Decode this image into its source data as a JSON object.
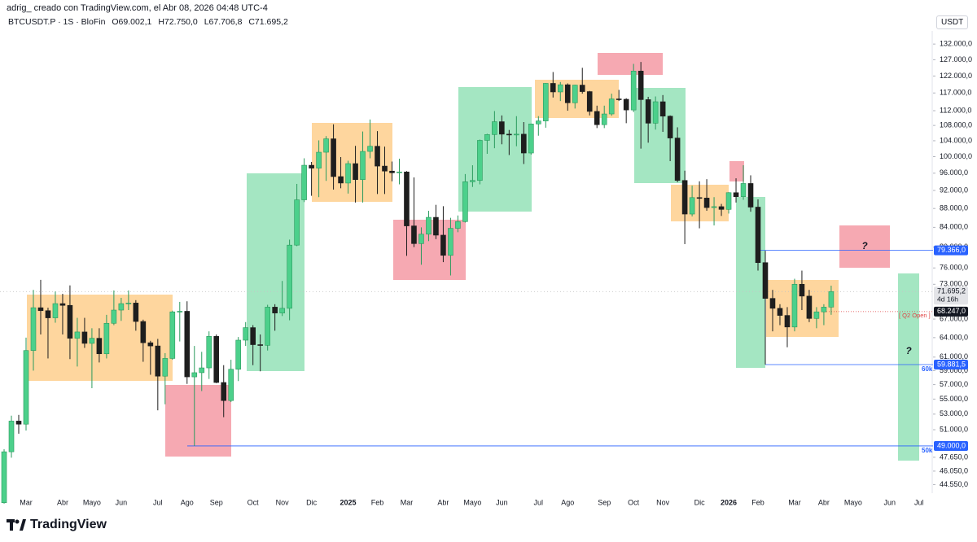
{
  "credit": "adrig_ creado con TradingView.com, el Abr 08, 2026 04:48 UTC-4",
  "brand": "TradingView",
  "chart_data": {
    "type": "candlestick",
    "title": "BTCUSDT.P · 1S · BloFin",
    "legend_values": [
      "O69.002,1",
      "H72.750,0",
      "L67.706,8",
      "C71.695,2"
    ],
    "currency": "USDT",
    "log_scale": true,
    "grid": false,
    "up_color": "#4cd08b",
    "down_color": "#1e1e1e",
    "ylim": [
      43700,
      135800
    ],
    "yticks": [
      {
        "value": 132000,
        "label": "132.000,0"
      },
      {
        "value": 127000,
        "label": "127.000,0"
      },
      {
        "value": 122000,
        "label": "122.000,0"
      },
      {
        "value": 117000,
        "label": "117.000,0"
      },
      {
        "value": 112000,
        "label": "112.000,0"
      },
      {
        "value": 108000,
        "label": "108.000,0"
      },
      {
        "value": 104000,
        "label": "104.000,0"
      },
      {
        "value": 100000,
        "label": "100.000,0"
      },
      {
        "value": 96000,
        "label": "96.000,0"
      },
      {
        "value": 92000,
        "label": "92.000,0"
      },
      {
        "value": 88000,
        "label": "88.000,0"
      },
      {
        "value": 84000,
        "label": "84.000,0"
      },
      {
        "value": 80000,
        "label": "80.000,0"
      },
      {
        "value": 76000,
        "label": "76.000,0"
      },
      {
        "value": 73000,
        "label": "73.000,0"
      },
      {
        "value": 67000,
        "label": "67.000,0"
      },
      {
        "value": 64000,
        "label": "64.000,0"
      },
      {
        "value": 61000,
        "label": "61.000,0"
      },
      {
        "value": 59000,
        "label": "59.000,0"
      },
      {
        "value": 57000,
        "label": "57.000,0"
      },
      {
        "value": 55000,
        "label": "55.000,0"
      },
      {
        "value": 53000,
        "label": "53.000,0"
      },
      {
        "value": 51000,
        "label": "51.000,0"
      },
      {
        "value": 47650,
        "label": "47.650,0"
      },
      {
        "value": 46050,
        "label": "46.050,0"
      },
      {
        "value": 44550,
        "label": "44.550,0"
      }
    ],
    "categories": [
      null,
      null,
      null,
      "Mar",
      null,
      null,
      null,
      null,
      "Abr",
      null,
      null,
      null,
      "Mayo",
      null,
      null,
      null,
      "Jun",
      null,
      null,
      null,
      null,
      "Jul",
      null,
      null,
      null,
      "Ago",
      null,
      null,
      null,
      "Sep",
      null,
      null,
      null,
      null,
      "Oct",
      null,
      null,
      null,
      "Nov",
      null,
      null,
      null,
      "Dic",
      null,
      null,
      null,
      null,
      "2025",
      null,
      null,
      null,
      "Feb",
      null,
      null,
      null,
      "Mar",
      null,
      null,
      null,
      null,
      "Abr",
      null,
      null,
      null,
      "Mayo",
      null,
      null,
      null,
      "Jun",
      null,
      null,
      null,
      null,
      "Jul",
      null,
      null,
      null,
      "Ago",
      null,
      null,
      null,
      null,
      "Sep",
      null,
      null,
      null,
      "Oct",
      null,
      null,
      null,
      "Nov",
      null,
      null,
      null,
      null,
      "Dic",
      null,
      null,
      null,
      "2026",
      null,
      null,
      null,
      "Feb",
      null,
      null,
      null,
      null,
      "Mar",
      null,
      null,
      null,
      "Abr",
      null,
      null,
      null,
      "Mayo",
      null,
      null,
      null,
      null,
      "Jun",
      null,
      null,
      null,
      "Jul"
    ],
    "open": [
      42600,
      48300,
      52100,
      51700,
      62000,
      68900,
      68400,
      67200,
      69600,
      69300,
      63900,
      64900,
      63100,
      63900,
      61500,
      66300,
      68500,
      69600,
      69700,
      66600,
      63200,
      62700,
      58200,
      60800,
      68200,
      68300,
      58100,
      58700,
      59400,
      64200,
      57300,
      54800,
      59200,
      63600,
      65600,
      62900,
      62800,
      69000,
      68000,
      68800,
      80400,
      89900,
      97900,
      97200,
      101100,
      104500,
      95200,
      93700,
      98300,
      94500,
      101300,
      102600,
      97700,
      96500,
      96100,
      96300,
      84300,
      80700,
      82600,
      86100,
      82400,
      78400,
      83800,
      85200,
      94000,
      94300,
      104100,
      105600,
      109000,
      105700,
      105600,
      105700,
      100900,
      108400,
      109200,
      119800,
      117300,
      119400,
      114200,
      119300,
      117400,
      111800,
      108200,
      111100,
      115300,
      115200,
      112200,
      123500,
      115100,
      108600,
      114500,
      110500,
      104700,
      94300,
      86800,
      90400,
      90300,
      88200,
      88400,
      87800,
      91500,
      90600,
      93600,
      88300,
      77000,
      70500,
      68800,
      67600,
      65700,
      73000,
      70900,
      67100,
      68200,
      69002.1,
      null,
      null,
      null,
      null,
      null,
      null,
      null,
      null,
      null,
      null,
      null,
      null
    ],
    "high": [
      48600,
      52800,
      52900,
      64000,
      72000,
      73800,
      68900,
      71700,
      71300,
      72800,
      67200,
      67200,
      65500,
      65500,
      67700,
      71900,
      70600,
      71900,
      70200,
      66900,
      63500,
      63800,
      61600,
      68400,
      69900,
      70000,
      62700,
      61800,
      65000,
      64500,
      59800,
      60600,
      64100,
      66500,
      66000,
      64500,
      69400,
      69500,
      73600,
      81500,
      93500,
      99600,
      98700,
      104100,
      105200,
      108300,
      99900,
      99000,
      102700,
      106400,
      109600,
      106500,
      102500,
      98800,
      99500,
      96500,
      95000,
      84000,
      87500,
      88800,
      88500,
      86000,
      86500,
      95800,
      97900,
      104300,
      105800,
      111900,
      110700,
      106800,
      110500,
      108900,
      108500,
      110500,
      119900,
      123200,
      120200,
      119800,
      119400,
      124500,
      117600,
      113400,
      113400,
      116800,
      117900,
      115500,
      125700,
      126300,
      115900,
      116000,
      116400,
      110700,
      107500,
      96600,
      93100,
      94100,
      94600,
      90500,
      89000,
      91600,
      94800,
      97900,
      95500,
      90000,
      79300,
      72000,
      69500,
      69000,
      74000,
      75500,
      72000,
      69000,
      69500,
      72750,
      null,
      null,
      null,
      null,
      null,
      null,
      null,
      null,
      null,
      null,
      null,
      null
    ],
    "low": [
      42500,
      47600,
      50500,
      50900,
      59000,
      64500,
      60800,
      66400,
      64500,
      60700,
      59600,
      62400,
      56500,
      60200,
      60800,
      66000,
      66700,
      68500,
      65100,
      60300,
      58400,
      53500,
      54300,
      60600,
      63400,
      57100,
      49000,
      56100,
      57800,
      57200,
      52600,
      54600,
      57500,
      62700,
      59800,
      58900,
      62000,
      65100,
      67500,
      66800,
      80200,
      89400,
      90800,
      90500,
      94200,
      92200,
      92500,
      91300,
      89300,
      89300,
      99600,
      91200,
      91200,
      94100,
      93400,
      78300,
      80000,
      76600,
      81200,
      81600,
      77100,
      74600,
      83000,
      85000,
      92800,
      93400,
      100700,
      102100,
      103100,
      100400,
      102600,
      98200,
      100500,
      105300,
      107400,
      115700,
      114700,
      112000,
      112600,
      116800,
      110700,
      107300,
      107300,
      110600,
      114700,
      108600,
      111600,
      102000,
      103500,
      106900,
      106300,
      98900,
      93900,
      80600,
      86300,
      83800,
      87500,
      84400,
      86400,
      86900,
      89300,
      89900,
      87300,
      75500,
      59900,
      65000,
      66000,
      62500,
      65000,
      68500,
      66500,
      65500,
      66000,
      67706.8,
      null,
      null,
      null,
      null,
      null,
      null,
      null,
      null,
      null,
      null,
      null,
      null
    ],
    "close": [
      48300,
      52100,
      51700,
      62000,
      68900,
      68400,
      67200,
      69600,
      69300,
      63900,
      64900,
      63100,
      63900,
      61500,
      66300,
      68500,
      69600,
      69700,
      66600,
      63200,
      62700,
      58200,
      60800,
      68200,
      68300,
      58100,
      58700,
      59400,
      64200,
      57300,
      54800,
      59200,
      63600,
      65600,
      62900,
      62800,
      69000,
      68000,
      68800,
      80400,
      89900,
      97900,
      97200,
      101100,
      104500,
      95200,
      93700,
      98300,
      94500,
      101300,
      102600,
      97700,
      96500,
      96100,
      96300,
      84300,
      80700,
      82600,
      86100,
      82400,
      78400,
      83800,
      85200,
      94000,
      94300,
      104100,
      105600,
      109000,
      105700,
      105600,
      105700,
      100900,
      108400,
      109200,
      119800,
      117300,
      119400,
      114200,
      119300,
      117400,
      111800,
      108200,
      111100,
      115300,
      115200,
      112200,
      123500,
      115100,
      108600,
      114500,
      110500,
      104700,
      94300,
      86800,
      90400,
      90300,
      88200,
      88400,
      87800,
      91500,
      90600,
      93600,
      88300,
      77000,
      70500,
      68800,
      67600,
      65700,
      73000,
      70900,
      67100,
      68200,
      69000,
      71695.2,
      null,
      null,
      null,
      null,
      null,
      null,
      null,
      null,
      null,
      null,
      null,
      null
    ],
    "price_lines": [
      {
        "value": 79366,
        "label": "79.366,0",
        "color": "#2962ff"
      },
      {
        "value": 59881.5,
        "label": "59.881,5",
        "color": "#2962ff",
        "note": "60k"
      },
      {
        "value": 49000,
        "label": "49.000,0",
        "color": "#2962ff",
        "note": "50k"
      }
    ],
    "quarter_open": {
      "value": 68247,
      "label": "68.247,0",
      "text": "[ Q2 Open ]",
      "color": "#e04040"
    },
    "last_price": {
      "value": 71695.2,
      "label": "71.695,2",
      "countdown": "4d 16h"
    },
    "annotations": [
      "?",
      "?"
    ]
  }
}
